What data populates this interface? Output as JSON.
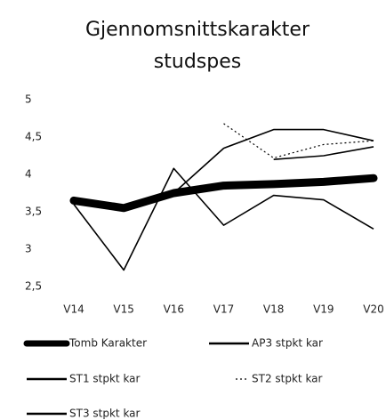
{
  "chart_data": {
    "type": "line",
    "title": [
      "Gjennomsnittskarakter",
      "studspes"
    ],
    "categories": [
      "V14",
      "V15",
      "V16",
      "V17",
      "V18",
      "V19",
      "V20"
    ],
    "series": [
      {
        "name": "Tomb Karakter",
        "color": "#000000",
        "style": "thick",
        "values": [
          3.65,
          3.55,
          3.75,
          3.85,
          3.87,
          3.9,
          3.95
        ]
      },
      {
        "name": "AP3 stpkt kar",
        "color": "#000000",
        "style": "thin",
        "values": [
          3.6,
          2.72,
          4.08,
          3.32,
          3.72,
          3.66,
          3.27
        ]
      },
      {
        "name": "ST1 stpkt kar",
        "color": "#000000",
        "style": "thin",
        "values": [
          null,
          null,
          3.75,
          4.35,
          4.6,
          4.6,
          4.45
        ]
      },
      {
        "name": "ST2 stpkt kar",
        "color": "#000000",
        "style": "dotted",
        "values": [
          null,
          null,
          null,
          4.68,
          4.22,
          4.4,
          4.45
        ]
      },
      {
        "name": "ST3 stpkt kar",
        "color": "#000000",
        "style": "thin",
        "values": [
          null,
          null,
          null,
          null,
          4.2,
          4.25,
          4.37
        ]
      }
    ],
    "ylim": [
      2.5,
      5
    ],
    "yticks": [
      {
        "value": 2.5,
        "label": "2,5"
      },
      3,
      {
        "value": 3.5,
        "label": "3,5"
      },
      4,
      {
        "value": 4.5,
        "label": "4,5"
      },
      5
    ],
    "grid": false,
    "legend": "bottom"
  }
}
